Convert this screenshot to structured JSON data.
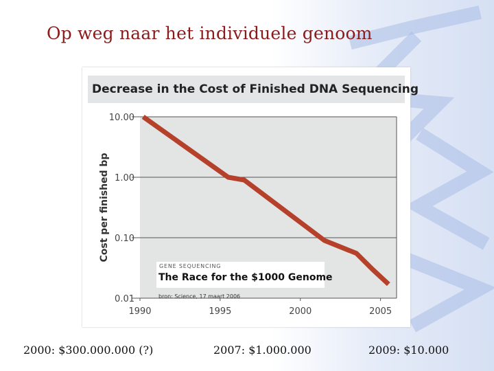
{
  "slide": {
    "title": "Op weg naar het individuele genoom",
    "footnotes": [
      "2000: $300.000.000 (?)",
      "2007: $1.000.000",
      "2009: $10.000"
    ]
  },
  "colors": {
    "title": "#8b1a1a",
    "series": "#b5412a",
    "watermark": "#a9bde6"
  },
  "chart_data": {
    "type": "line",
    "title": "Decrease in the Cost of Finished DNA Sequencing",
    "ylabel": "Cost per finished bp",
    "xlabel": "",
    "yscale": "log",
    "ylim": [
      0.01,
      10
    ],
    "xlim": [
      1990,
      2006
    ],
    "yticks": [
      {
        "value": 10,
        "label": "10.00"
      },
      {
        "value": 1,
        "label": "1.00"
      },
      {
        "value": 0.1,
        "label": "0.10"
      },
      {
        "value": 0.01,
        "label": "0.01"
      }
    ],
    "xticks": [
      1990,
      1995,
      2000,
      2005
    ],
    "grid": true,
    "series": [
      {
        "x": [
          1990.2,
          1995.5,
          1996.5,
          2001.5,
          2003.5,
          2004.5,
          2005.5
        ],
        "y": [
          10,
          1.0,
          0.9,
          0.09,
          0.055,
          0.03,
          0.017
        ]
      }
    ],
    "inset": {
      "kicker": "GENE SEQUENCING",
      "headline": "The Race for the $1000 Genome"
    },
    "source": "bron: Science, 17 maart 2006"
  }
}
